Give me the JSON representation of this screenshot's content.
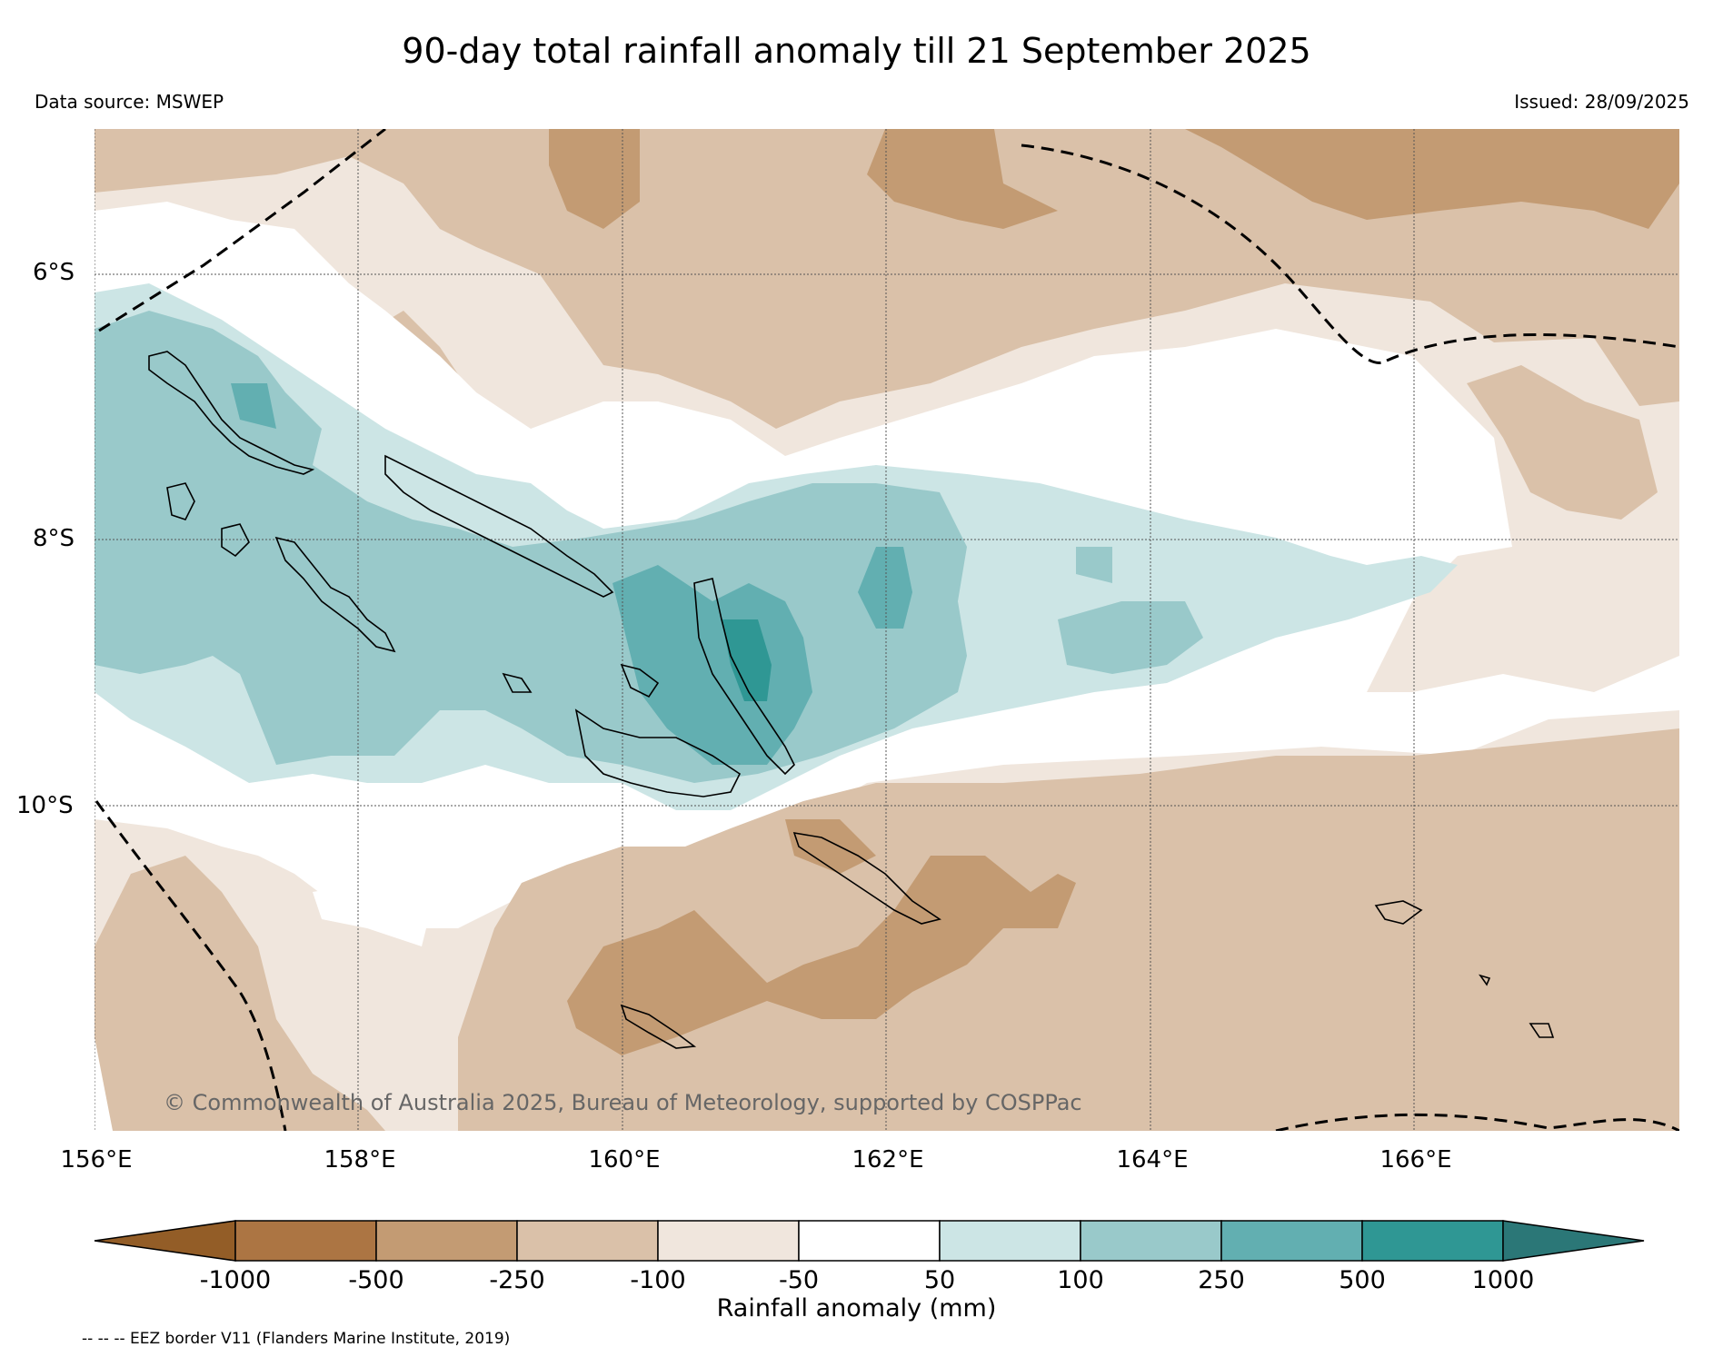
{
  "title": "90-day total rainfall anomaly till 21 September 2025",
  "data_source": "Data source: MSWEP",
  "issued": "Issued: 28/09/2025",
  "copyright": "© Commonwealth of Australia 2025, Bureau of Meteorology, supported by COSPPac",
  "latitudes": [
    "6°S",
    "8°S",
    "10°S"
  ],
  "longitudes": [
    "156°E",
    "158°E",
    "160°E",
    "162°E",
    "164°E",
    "166°E"
  ],
  "colorbar": {
    "label": "Rainfall anomaly (mm)",
    "ticks": [
      "-1000",
      "-500",
      "-250",
      "-100",
      "-50",
      "50",
      "100",
      "250",
      "500",
      "1000"
    ],
    "colors": [
      "#935d27",
      "#ac7543",
      "#c39b73",
      "#dac1a9",
      "#f0e6dd",
      "#ffffff",
      "#cce5e5",
      "#99c9ca",
      "#62afb1",
      "#2f9794",
      "#2b7777"
    ]
  },
  "footnote": "-- -- -- EEZ border V11 (Flanders Marine Institute, 2019)"
}
